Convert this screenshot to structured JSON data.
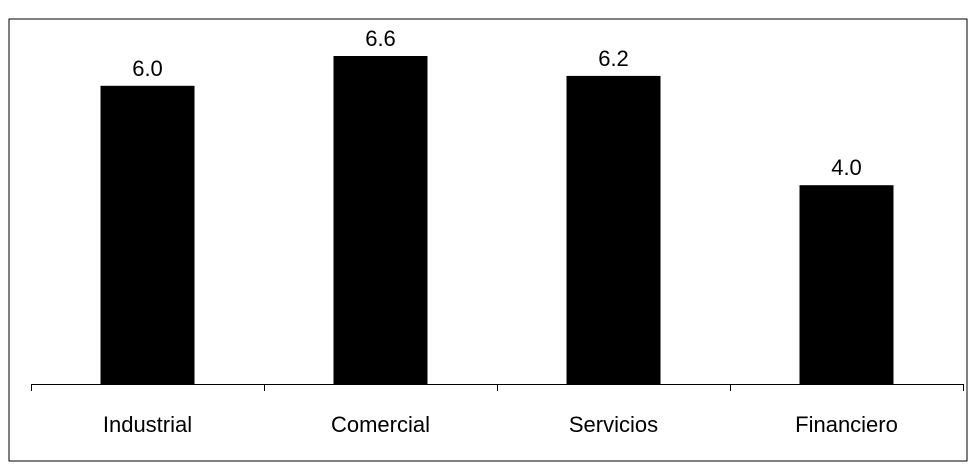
{
  "chart_data": {
    "type": "bar",
    "title": "",
    "xlabel": "",
    "ylabel": "",
    "categories": [
      "Industrial",
      "Comercial",
      "Servicios",
      "Financiero"
    ],
    "values": [
      6.0,
      6.6,
      6.2,
      4.0
    ],
    "data_labels": [
      "6.0",
      "6.6",
      "6.2",
      "4.0"
    ],
    "ylim": [
      0,
      6.6
    ],
    "grid": false,
    "legend": "none",
    "bar_color": "#000000",
    "frame_color": "#000000",
    "axis_color": "#000000"
  }
}
